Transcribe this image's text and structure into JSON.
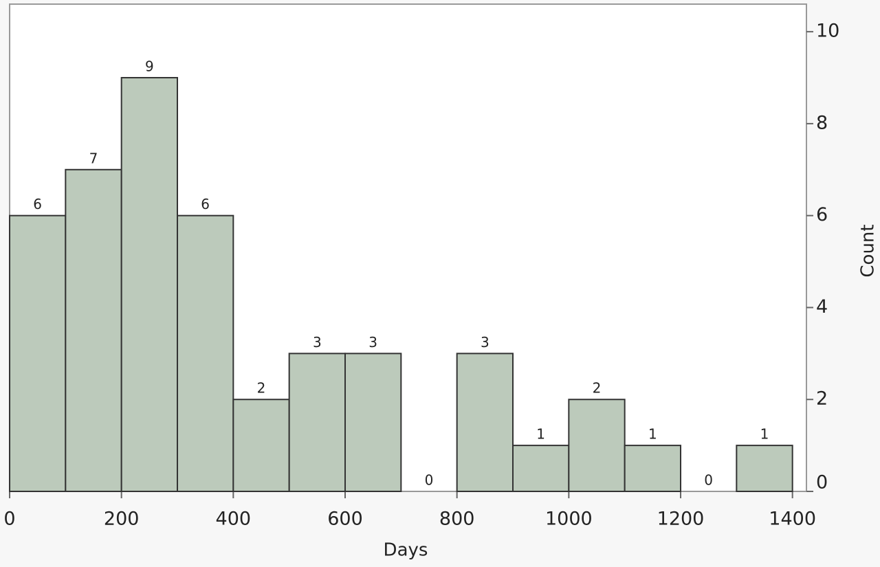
{
  "chart_data": {
    "type": "histogram",
    "x_label": "Days",
    "y_label": "Count",
    "bins": [
      0,
      100,
      200,
      300,
      400,
      500,
      600,
      700,
      800,
      900,
      1000,
      1100,
      1200,
      1300,
      1400
    ],
    "values": [
      6,
      7,
      9,
      6,
      2,
      3,
      3,
      0,
      3,
      1,
      2,
      1,
      0,
      1
    ],
    "color": "#bccabb",
    "xlim": [
      0,
      1425
    ],
    "xticks": [
      0,
      200,
      400,
      600,
      800,
      1000,
      1200,
      1400
    ],
    "ylim": [
      0,
      10.6
    ],
    "yticks": [
      0,
      2,
      4,
      6,
      8,
      10
    ],
    "grid": false
  }
}
